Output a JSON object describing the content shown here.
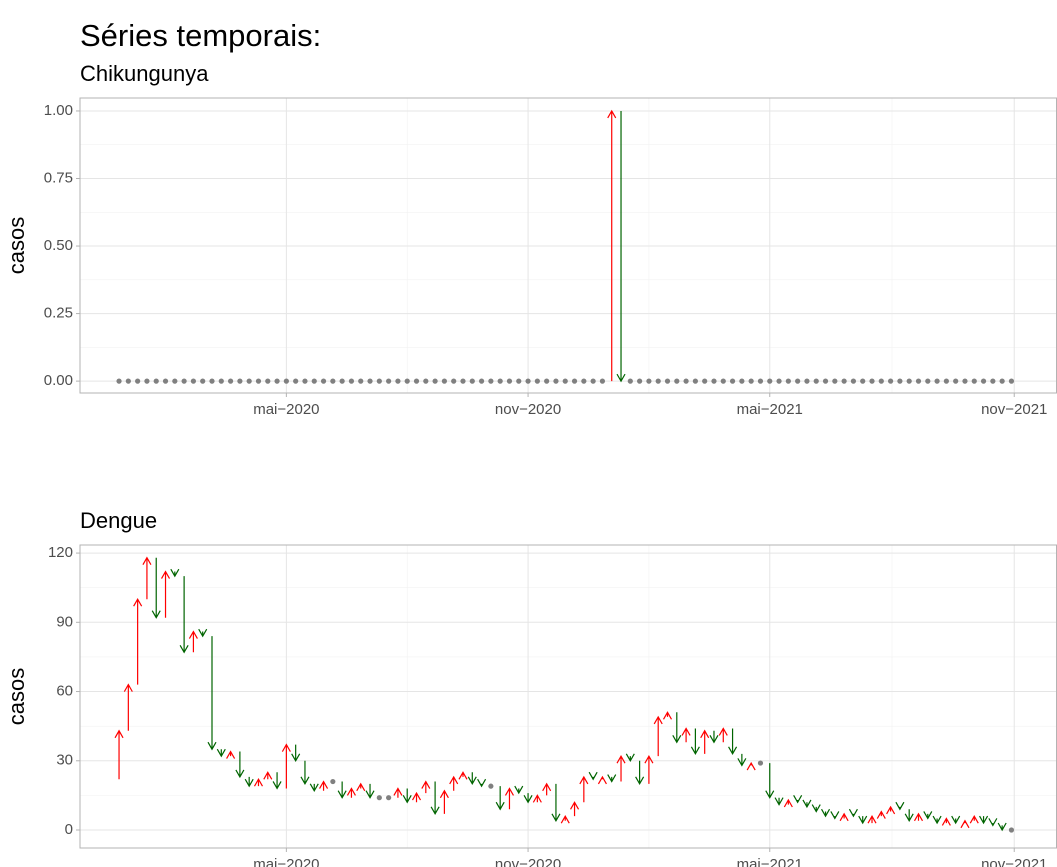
{
  "title": "Séries temporais:",
  "chart_data": [
    {
      "type": "arrow",
      "title": "Chikungunya",
      "ylabel": "casos",
      "categories": [
        null,
        null,
        null,
        null,
        null,
        null,
        null,
        null,
        null,
        null,
        null,
        null,
        null,
        null,
        null,
        null,
        null,
        null,
        null,
        null,
        null,
        null,
        null,
        null,
        null,
        null,
        null,
        null,
        null,
        null,
        null,
        null,
        null,
        null,
        null,
        null,
        null,
        null,
        null,
        null,
        null,
        null,
        null,
        null,
        null,
        null,
        null,
        null,
        null,
        null,
        null,
        null,
        null,
        null,
        null,
        null,
        null,
        null,
        null,
        null,
        null,
        null,
        null,
        null,
        null,
        null,
        null,
        null,
        null,
        null,
        null,
        null,
        null,
        null,
        null,
        null,
        null,
        null,
        null,
        null,
        null,
        null,
        null,
        null,
        null,
        null,
        null,
        null,
        null,
        null,
        null,
        null,
        null,
        null,
        null,
        null,
        null
      ],
      "values": [
        0,
        0,
        0,
        0,
        0,
        0,
        0,
        0,
        0,
        0,
        0,
        0,
        0,
        0,
        0,
        0,
        0,
        0,
        0,
        0,
        0,
        0,
        0,
        0,
        0,
        0,
        0,
        0,
        0,
        0,
        0,
        0,
        0,
        0,
        0,
        0,
        0,
        0,
        0,
        0,
        0,
        0,
        0,
        0,
        0,
        0,
        0,
        0,
        0,
        0,
        0,
        0,
        0,
        0,
        1,
        0,
        0,
        0,
        0,
        0,
        0,
        0,
        0,
        0,
        0,
        0,
        0,
        0,
        0,
        0,
        0,
        0,
        0,
        0,
        0,
        0,
        0,
        0,
        0,
        0,
        0,
        0,
        0,
        0,
        0,
        0,
        0,
        0,
        0,
        0,
        0,
        0,
        0,
        0,
        0,
        0,
        0
      ],
      "xlim": [
        -4.2,
        100.9
      ],
      "xticks": [
        {
          "value": 18,
          "label": "mai−2020"
        },
        {
          "value": 44,
          "label": "nov−2020"
        },
        {
          "value": 70,
          "label": "mai−2021"
        },
        {
          "value": 96.3,
          "label": "nov−2021"
        }
      ],
      "ylim": [
        -0.044,
        1.048
      ],
      "yticks": [
        {
          "value": 0,
          "label": "0.00"
        },
        {
          "value": 0.25,
          "label": "0.25"
        },
        {
          "value": 0.5,
          "label": "0.50"
        },
        {
          "value": 0.75,
          "label": "0.75"
        },
        {
          "value": 1,
          "label": "1.00"
        }
      ],
      "grid": true,
      "up_color": "#ff0000",
      "down_color": "#006400",
      "flat_color": "#808080"
    },
    {
      "type": "arrow",
      "title": "Dengue",
      "ylabel": "casos",
      "categories": [
        null,
        null,
        null,
        null,
        null,
        null,
        null,
        null,
        null,
        null,
        null,
        null,
        null,
        null,
        null,
        null,
        null,
        null,
        null,
        null,
        null,
        null,
        null,
        null,
        null,
        null,
        null,
        null,
        null,
        null,
        null,
        null,
        null,
        null,
        null,
        null,
        null,
        null,
        null,
        null,
        null,
        null,
        null,
        null,
        null,
        null,
        null,
        null,
        null,
        null,
        null,
        null,
        null,
        null,
        null,
        null,
        null,
        null,
        null,
        null,
        null,
        null,
        null,
        null,
        null,
        null,
        null,
        null,
        null,
        null,
        null,
        null,
        null,
        null,
        null,
        null,
        null,
        null,
        null,
        null,
        null,
        null,
        null,
        null,
        null,
        null,
        null,
        null,
        null,
        null,
        null,
        null,
        null,
        null,
        null,
        null,
        null
      ],
      "values": [
        22,
        43,
        63,
        100,
        118,
        92,
        112,
        110,
        77,
        86,
        84,
        35,
        32,
        34,
        23,
        19,
        22,
        25,
        18,
        37,
        30,
        20,
        17,
        21,
        21,
        14,
        18,
        20,
        14,
        14,
        14,
        18,
        12,
        16,
        21,
        7,
        17,
        23,
        25,
        20,
        19,
        19,
        9,
        18,
        16,
        12,
        15,
        20,
        4,
        6,
        12,
        23,
        22,
        23,
        21,
        32,
        30,
        20,
        32,
        49,
        51,
        38,
        44,
        33,
        43,
        38,
        44,
        33,
        28,
        29,
        29,
        14,
        11,
        13,
        12,
        10,
        8,
        6,
        5,
        7,
        6,
        3,
        6,
        8,
        10,
        9,
        4,
        7,
        5,
        3,
        5,
        3,
        4,
        6,
        3,
        2,
        0
      ],
      "xlim": [
        -4.2,
        100.9
      ],
      "xticks": [
        {
          "value": 18,
          "label": "mai−2020"
        },
        {
          "value": 44,
          "label": "nov−2020"
        },
        {
          "value": 70,
          "label": "mai−2021"
        },
        {
          "value": 96.3,
          "label": "nov−2021"
        }
      ],
      "ylim": [
        -7.8,
        123.5
      ],
      "yticks": [
        0,
        30,
        60,
        90,
        120
      ],
      "grid": true,
      "up_color": "#ff0000",
      "down_color": "#006400",
      "flat_color": "#808080"
    }
  ]
}
